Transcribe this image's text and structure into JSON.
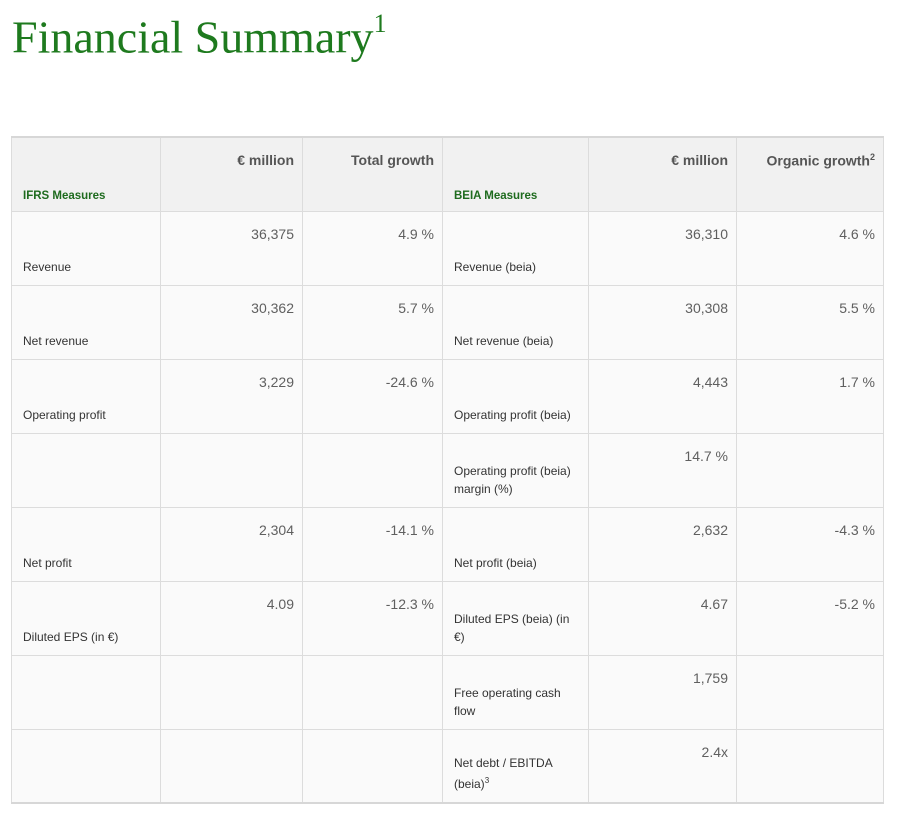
{
  "title": {
    "text": "Financial Summary",
    "footnote": "1"
  },
  "header": {
    "ifrs_label": "IFRS Measures",
    "col_million": "€ million",
    "col_total_growth": "Total growth",
    "beia_label": "BEIA Measures",
    "col_million_beia": "€ million",
    "col_organic_growth": "Organic growth",
    "organic_footnote": "2"
  },
  "rows": [
    {
      "ifrs_label": "Revenue",
      "ifrs_value": "36,375",
      "ifrs_growth": "4.9 %",
      "beia_label": "Revenue (beia)",
      "beia_value": "36,310",
      "beia_growth": "4.6 %"
    },
    {
      "ifrs_label": "Net revenue",
      "ifrs_value": "30,362",
      "ifrs_growth": "5.7 %",
      "beia_label": "Net revenue (beia)",
      "beia_value": "30,308",
      "beia_growth": "5.5 %"
    },
    {
      "ifrs_label": "Operating profit",
      "ifrs_value": "3,229",
      "ifrs_growth": "-24.6 %",
      "beia_label": "Operating profit (beia)",
      "beia_value": "4,443",
      "beia_growth": "1.7 %"
    },
    {
      "ifrs_label": "",
      "ifrs_value": "",
      "ifrs_growth": "",
      "beia_label": "Operating profit (beia) margin (%)",
      "beia_value": "14.7 %",
      "beia_growth": ""
    },
    {
      "ifrs_label": "Net profit",
      "ifrs_value": "2,304",
      "ifrs_growth": "-14.1 %",
      "beia_label": "Net profit (beia)",
      "beia_value": "2,632",
      "beia_growth": "-4.3 %"
    },
    {
      "ifrs_label": "Diluted EPS (in €)",
      "ifrs_value": "4.09",
      "ifrs_growth": "-12.3 %",
      "beia_label": "Diluted EPS (beia) (in €)",
      "beia_value": "4.67",
      "beia_growth": "-5.2 %"
    },
    {
      "ifrs_label": "",
      "ifrs_value": "",
      "ifrs_growth": "",
      "beia_label": "Free operating cash flow",
      "beia_value": "1,759",
      "beia_growth": ""
    },
    {
      "ifrs_label": "",
      "ifrs_value": "",
      "ifrs_growth": "",
      "beia_label": "Net debt / EBITDA (beia)",
      "beia_footnote": "3",
      "beia_value": "2.4x",
      "beia_growth": ""
    }
  ],
  "colors": {
    "title": "#1e7a1e",
    "measures_label": "#1e6b1e"
  }
}
